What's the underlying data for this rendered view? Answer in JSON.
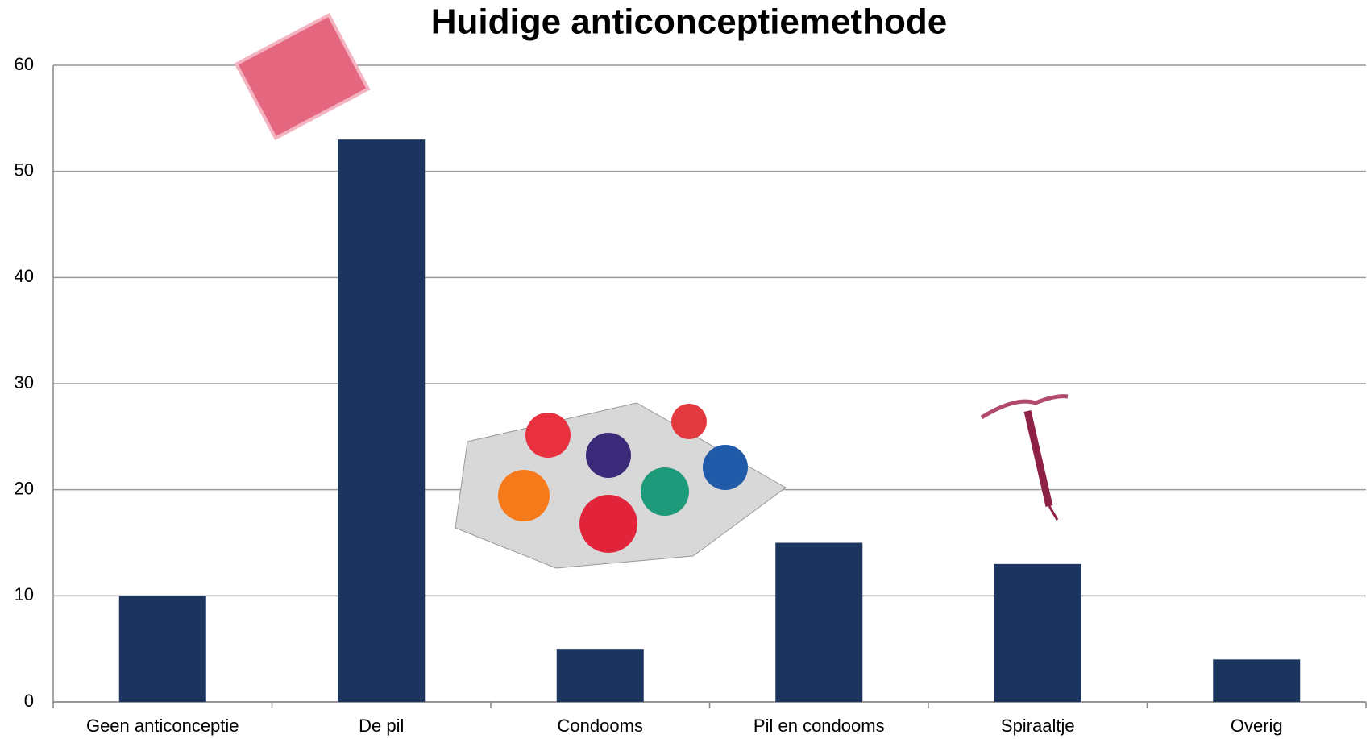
{
  "chart_data": {
    "type": "bar",
    "title": "Huidige anticonceptiemethode",
    "categories": [
      "Geen anticonceptie",
      "De pil",
      "Condooms",
      "Pil en condooms",
      "Spiraaltje",
      "Overig"
    ],
    "values": [
      10,
      53,
      5,
      15,
      13,
      4
    ],
    "color": "#1c355e",
    "ylim": [
      0,
      60
    ],
    "yticks": [
      0,
      10,
      20,
      30,
      40,
      50,
      60
    ],
    "grid": true
  }
}
